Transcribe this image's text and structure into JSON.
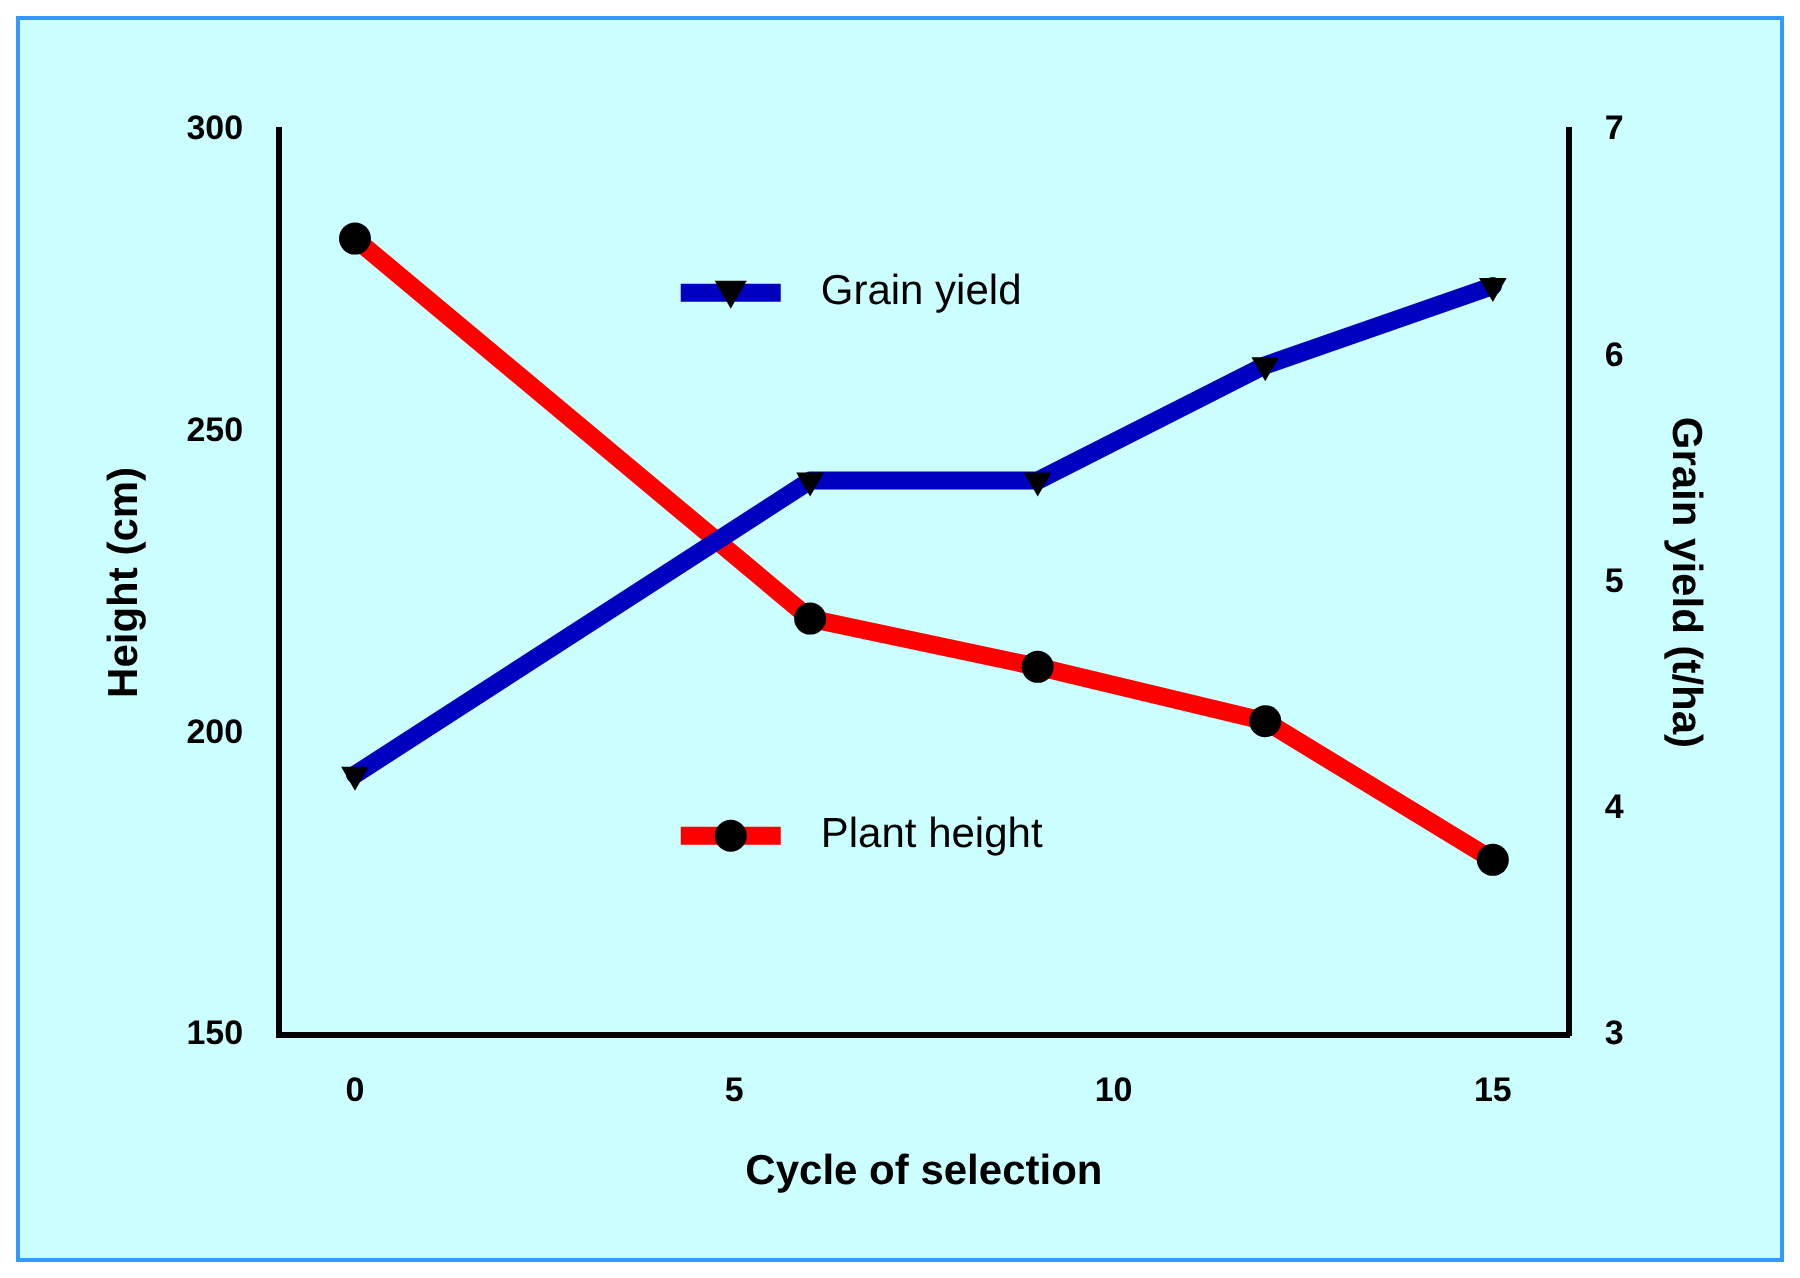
{
  "chart_data": {
    "type": "line",
    "xlabel": "Cycle of selection",
    "ylabel": "Height (cm)",
    "y2label": "Grain yield (t/ha)",
    "x": [
      0,
      6,
      9,
      12,
      15
    ],
    "xlim": [
      -1,
      16
    ],
    "xticks": [
      0,
      5,
      10,
      15
    ],
    "ylim": [
      150,
      300
    ],
    "yticks": [
      150,
      200,
      250,
      300
    ],
    "y2lim": [
      3,
      7
    ],
    "y2ticks": [
      3,
      4,
      5,
      6,
      7
    ],
    "legend": "center",
    "grid": false,
    "series": [
      {
        "name": "Grain yield",
        "color": "#0000c0",
        "axis": "y2",
        "marker": "triangle",
        "values": [
          4.15,
          5.45,
          5.45,
          5.96,
          6.31
        ]
      },
      {
        "name": "Plant height",
        "color": "#ff0000",
        "marker": "circle",
        "values": [
          282,
          219,
          211,
          202,
          179
        ]
      }
    ]
  }
}
